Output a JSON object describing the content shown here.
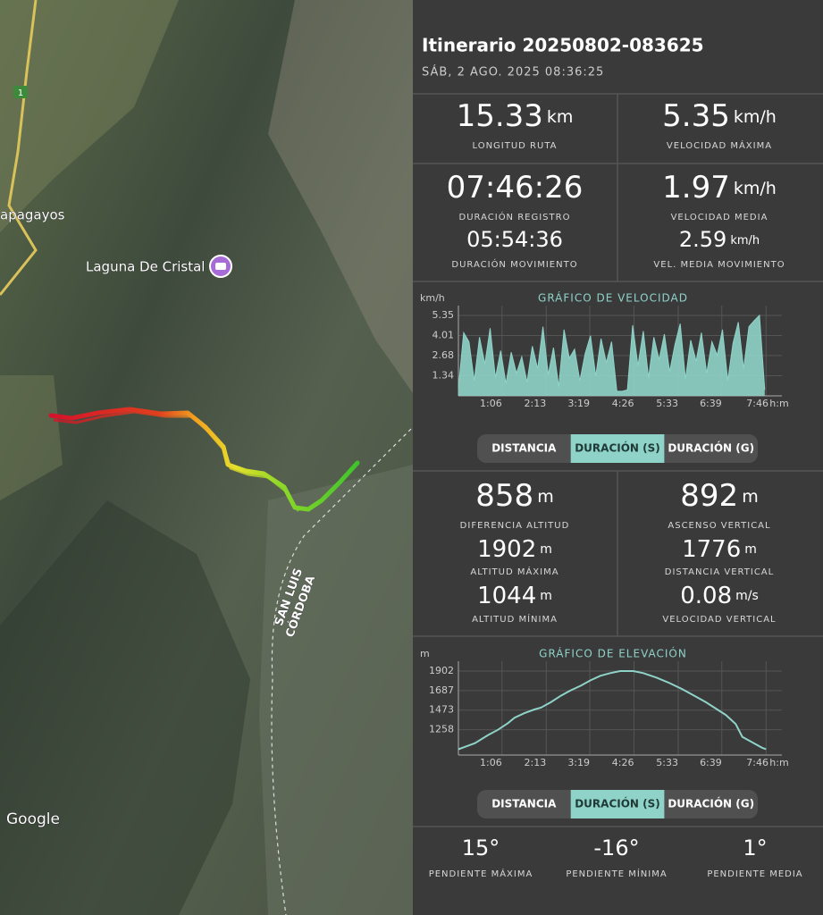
{
  "map": {
    "town_label": "apagayos",
    "poi_label": "Laguna De Cristal",
    "route_sign": "1",
    "province_west": "SAN LUIS",
    "province_east": "CÓRDOBA",
    "attribution": "Google"
  },
  "header": {
    "title": "Itinerario 20250802-083625",
    "subtitle": "SÁB, 2 AGO. 2025 08:36:25"
  },
  "summary_stats": [
    {
      "value": "15.33",
      "unit": "km",
      "label": "LONGITUD RUTA"
    },
    {
      "value": "5.35",
      "unit": "km/h",
      "label": "VELOCIDAD MÁXIMA"
    },
    {
      "value": "07:46:26",
      "label": "DURACIÓN REGISTRO"
    },
    {
      "value": "1.97",
      "unit": "km/h",
      "label": "VELOCIDAD MEDIA"
    },
    {
      "value": "05:54:36",
      "label": "DURACIÓN MOVIMIENTO"
    },
    {
      "value": "2.59",
      "unit": "km/h",
      "label": "VEL. MEDIA MOVIMIENTO"
    }
  ],
  "speed_chart": {
    "type": "area",
    "title": "GRÁFICO DE VELOCIDAD",
    "y_unit": "km/h",
    "x_unit": "h:m",
    "color": "#8fd3c8",
    "ylim": [
      0,
      6
    ],
    "yticks": [
      1.34,
      2.68,
      4.01,
      5.35
    ],
    "xlim": [
      0,
      490
    ],
    "xticks": [
      {
        "value": 66,
        "label": "1:06"
      },
      {
        "value": 133,
        "label": "2:13"
      },
      {
        "value": 199,
        "label": "3:19"
      },
      {
        "value": 266,
        "label": "4:26"
      },
      {
        "value": 333,
        "label": "5:33"
      },
      {
        "value": 399,
        "label": "6:39"
      },
      {
        "value": 466,
        "label": "7:46"
      }
    ],
    "x": [
      0,
      8,
      16,
      24,
      32,
      40,
      48,
      56,
      64,
      72,
      80,
      88,
      96,
      104,
      112,
      120,
      128,
      136,
      144,
      152,
      160,
      168,
      176,
      184,
      192,
      200,
      208,
      216,
      224,
      232,
      240,
      248,
      256,
      264,
      272,
      280,
      288,
      296,
      304,
      312,
      320,
      328,
      336,
      344,
      352,
      360,
      368,
      376,
      384,
      392,
      400,
      408,
      416,
      424,
      432,
      440,
      448,
      456,
      464
    ],
    "values": [
      0.5,
      4.2,
      3.6,
      1.0,
      3.9,
      2.1,
      4.5,
      1.2,
      3.0,
      0.8,
      2.9,
      1.5,
      2.6,
      0.9,
      3.3,
      1.8,
      4.6,
      1.4,
      3.2,
      0.6,
      4.4,
      2.5,
      3.1,
      1.0,
      2.8,
      4.0,
      1.3,
      3.8,
      2.2,
      3.6,
      0.3,
      0.3,
      0.4,
      4.7,
      2.0,
      4.3,
      1.2,
      3.9,
      2.4,
      4.1,
      1.6,
      3.4,
      4.8,
      1.1,
      3.7,
      2.3,
      4.2,
      1.5,
      3.6,
      2.7,
      4.4,
      1.0,
      3.5,
      4.9,
      1.8,
      4.6,
      5.0,
      5.35,
      0.4
    ]
  },
  "speed_toggle": {
    "options": [
      "DISTANCIA",
      "DURACIÓN (S)",
      "DURACIÓN (G)"
    ],
    "selected": 1
  },
  "elevation_stats": [
    {
      "value": "858",
      "unit": "m",
      "label": "DIFERENCIA ALTITUD"
    },
    {
      "value": "892",
      "unit": "m",
      "label": "ASCENSO VERTICAL"
    },
    {
      "value": "1902",
      "unit": "m",
      "label": "ALTITUD MÁXIMA"
    },
    {
      "value": "1776",
      "unit": "m",
      "label": "DISTANCIA VERTICAL"
    },
    {
      "value": "1044",
      "unit": "m",
      "label": "ALTITUD MÍNIMA"
    },
    {
      "value": "0.08",
      "unit": "m/s",
      "label": "VELOCIDAD VERTICAL"
    }
  ],
  "elevation_chart": {
    "type": "line",
    "title": "GRÁFICO DE ELEVACIÓN",
    "y_unit": "m",
    "x_unit": "h:m",
    "color": "#8fd3c8",
    "ylim": [
      980,
      2010
    ],
    "yticks": [
      1258,
      1473,
      1687,
      1902
    ],
    "xlim": [
      0,
      490
    ],
    "xticks": [
      {
        "value": 66,
        "label": "1:06"
      },
      {
        "value": 133,
        "label": "2:13"
      },
      {
        "value": 199,
        "label": "3:19"
      },
      {
        "value": 266,
        "label": "4:26"
      },
      {
        "value": 333,
        "label": "5:33"
      },
      {
        "value": 399,
        "label": "6:39"
      },
      {
        "value": 466,
        "label": "7:46"
      }
    ],
    "x": [
      0,
      10,
      25,
      45,
      60,
      75,
      85,
      100,
      115,
      125,
      140,
      155,
      170,
      185,
      200,
      215,
      230,
      245,
      265,
      280,
      300,
      320,
      340,
      360,
      375,
      390,
      405,
      420,
      430,
      445,
      460,
      466
    ],
    "values": [
      1044,
      1070,
      1110,
      1200,
      1258,
      1330,
      1390,
      1440,
      1480,
      1500,
      1560,
      1630,
      1690,
      1740,
      1800,
      1850,
      1880,
      1902,
      1902,
      1880,
      1830,
      1770,
      1700,
      1620,
      1560,
      1490,
      1420,
      1320,
      1180,
      1120,
      1060,
      1044
    ]
  },
  "elevation_toggle": {
    "options": [
      "DISTANCIA",
      "DURACIÓN (S)",
      "DURACIÓN (G)"
    ],
    "selected": 1
  },
  "slope_stats": [
    {
      "value": "15°",
      "label": "PENDIENTE MÁXIMA"
    },
    {
      "value": "-16°",
      "label": "PENDIENTE MÍNIMA"
    },
    {
      "value": "1°",
      "label": "PENDIENTE MEDIA"
    }
  ]
}
